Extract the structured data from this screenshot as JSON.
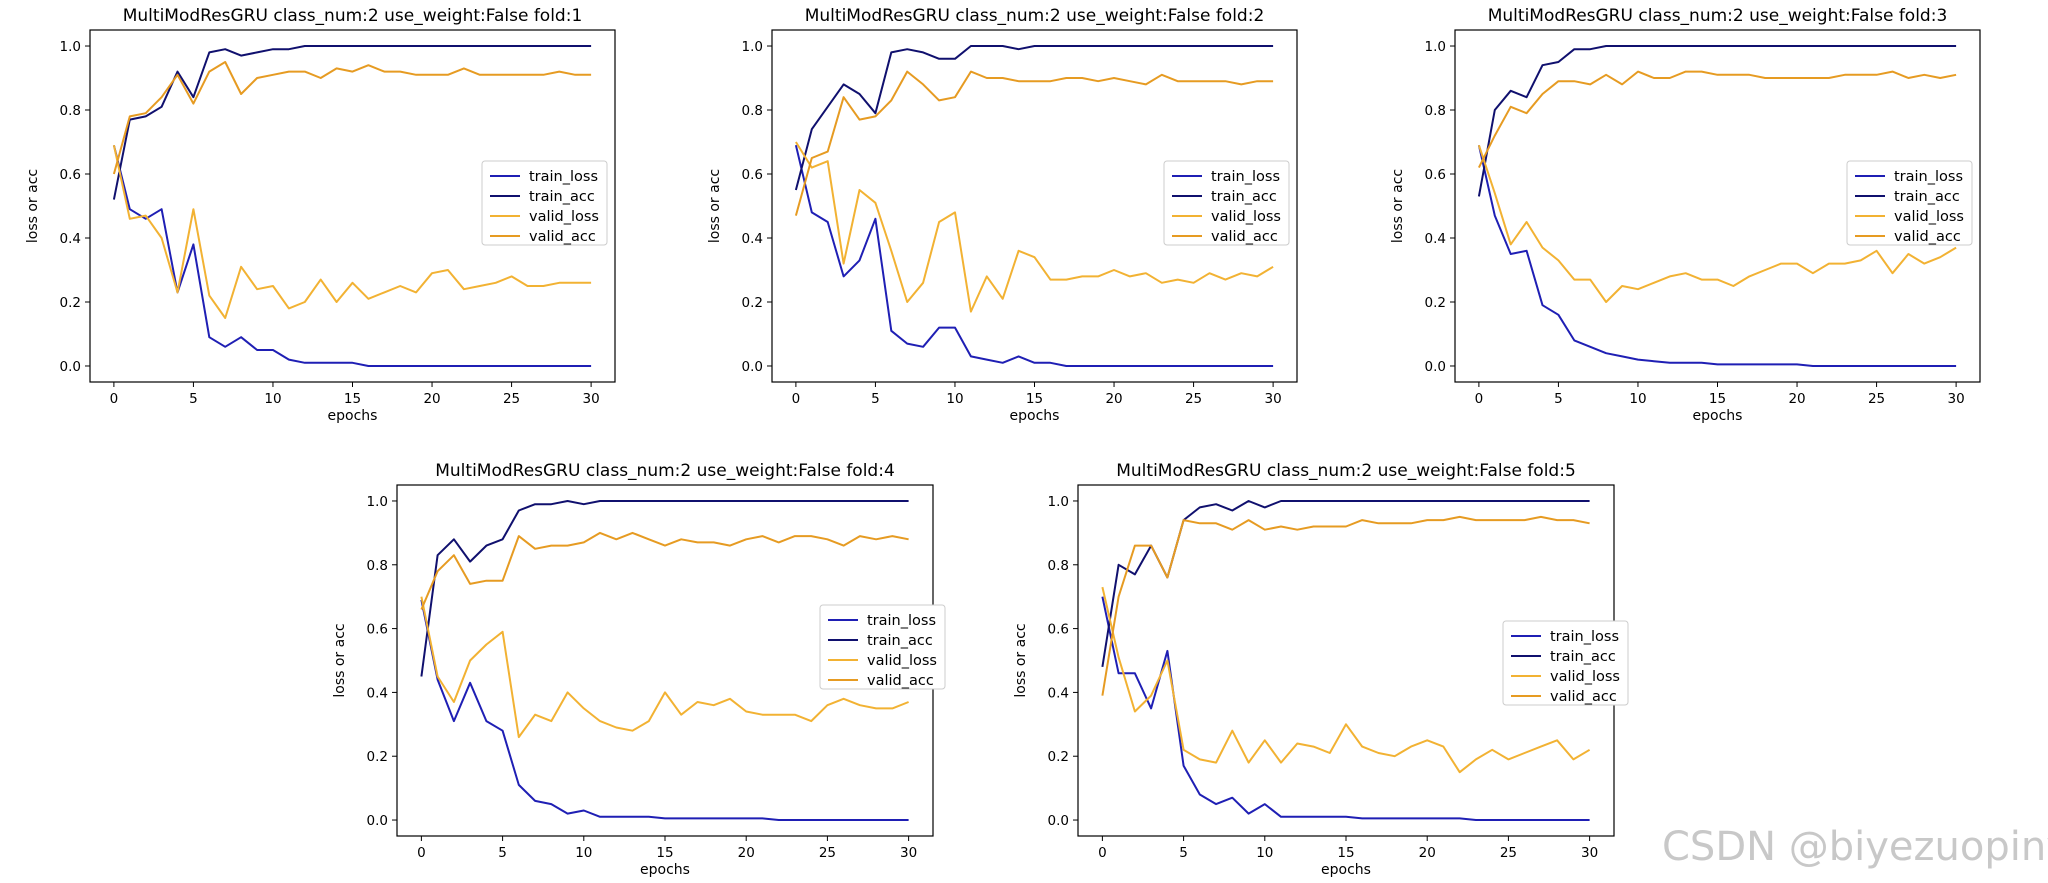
{
  "watermark": "CSDN @biyezuopinvip",
  "colors": {
    "train_loss": "#1f1fb4",
    "train_acc": "#10106e",
    "valid_loss": "#f2b233",
    "valid_acc": "#e69b22"
  },
  "chart_data": [
    {
      "type": "line",
      "title": "MultiModResGRU class_num:2 use_weight:False fold:1",
      "xlabel": "epochs",
      "ylabel": "loss or acc",
      "xlim": [
        0,
        30
      ],
      "ylim": [
        0,
        1
      ],
      "xticks": [
        0,
        5,
        10,
        15,
        20,
        25,
        30
      ],
      "yticks": [
        "0.0",
        "0.2",
        "0.4",
        "0.6",
        "0.8",
        "1.0"
      ],
      "legend": "center-right",
      "series": [
        {
          "name": "train_loss",
          "values": [
            0.69,
            0.49,
            0.46,
            0.49,
            0.23,
            0.38,
            0.09,
            0.06,
            0.09,
            0.05,
            0.05,
            0.02,
            0.01,
            0.01,
            0.01,
            0.01,
            0.0,
            0.0,
            0.0,
            0.0,
            0.0,
            0.0,
            0.0,
            0.0,
            0.0,
            0.0,
            0.0,
            0.0,
            0.0,
            0.0,
            0.0
          ]
        },
        {
          "name": "train_acc",
          "values": [
            0.52,
            0.77,
            0.78,
            0.81,
            0.92,
            0.84,
            0.98,
            0.99,
            0.97,
            0.98,
            0.99,
            0.99,
            1.0,
            1.0,
            1.0,
            1.0,
            1.0,
            1.0,
            1.0,
            1.0,
            1.0,
            1.0,
            1.0,
            1.0,
            1.0,
            1.0,
            1.0,
            1.0,
            1.0,
            1.0,
            1.0
          ]
        },
        {
          "name": "valid_loss",
          "values": [
            0.69,
            0.46,
            0.47,
            0.4,
            0.23,
            0.49,
            0.22,
            0.15,
            0.31,
            0.24,
            0.25,
            0.18,
            0.2,
            0.27,
            0.2,
            0.26,
            0.21,
            0.23,
            0.25,
            0.23,
            0.29,
            0.3,
            0.24,
            0.25,
            0.26,
            0.28,
            0.25,
            0.25,
            0.26,
            0.26,
            0.26
          ]
        },
        {
          "name": "valid_acc",
          "values": [
            0.6,
            0.78,
            0.79,
            0.84,
            0.91,
            0.82,
            0.92,
            0.95,
            0.85,
            0.9,
            0.91,
            0.92,
            0.92,
            0.9,
            0.93,
            0.92,
            0.94,
            0.92,
            0.92,
            0.91,
            0.91,
            0.91,
            0.93,
            0.91,
            0.91,
            0.91,
            0.91,
            0.91,
            0.92,
            0.91,
            0.91
          ]
        }
      ]
    },
    {
      "type": "line",
      "title": "MultiModResGRU class_num:2 use_weight:False fold:2",
      "xlabel": "epochs",
      "ylabel": "loss or acc",
      "xlim": [
        0,
        30
      ],
      "ylim": [
        0,
        1
      ],
      "xticks": [
        0,
        5,
        10,
        15,
        20,
        25,
        30
      ],
      "yticks": [
        "0.0",
        "0.2",
        "0.4",
        "0.6",
        "0.8",
        "1.0"
      ],
      "legend": "center-right",
      "series": [
        {
          "name": "train_loss",
          "values": [
            0.69,
            0.48,
            0.45,
            0.28,
            0.33,
            0.46,
            0.11,
            0.07,
            0.06,
            0.12,
            0.12,
            0.03,
            0.02,
            0.01,
            0.03,
            0.01,
            0.01,
            0.0,
            0.0,
            0.0,
            0.0,
            0.0,
            0.0,
            0.0,
            0.0,
            0.0,
            0.0,
            0.0,
            0.0,
            0.0,
            0.0
          ]
        },
        {
          "name": "train_acc",
          "values": [
            0.55,
            0.74,
            0.81,
            0.88,
            0.85,
            0.79,
            0.98,
            0.99,
            0.98,
            0.96,
            0.96,
            1.0,
            1.0,
            1.0,
            0.99,
            1.0,
            1.0,
            1.0,
            1.0,
            1.0,
            1.0,
            1.0,
            1.0,
            1.0,
            1.0,
            1.0,
            1.0,
            1.0,
            1.0,
            1.0,
            1.0
          ]
        },
        {
          "name": "valid_loss",
          "values": [
            0.7,
            0.62,
            0.64,
            0.32,
            0.55,
            0.51,
            0.36,
            0.2,
            0.26,
            0.45,
            0.48,
            0.17,
            0.28,
            0.21,
            0.36,
            0.34,
            0.27,
            0.27,
            0.28,
            0.28,
            0.3,
            0.28,
            0.29,
            0.26,
            0.27,
            0.26,
            0.29,
            0.27,
            0.29,
            0.28,
            0.31
          ]
        },
        {
          "name": "valid_acc",
          "values": [
            0.47,
            0.65,
            0.67,
            0.84,
            0.77,
            0.78,
            0.83,
            0.92,
            0.88,
            0.83,
            0.84,
            0.92,
            0.9,
            0.9,
            0.89,
            0.89,
            0.89,
            0.9,
            0.9,
            0.89,
            0.9,
            0.89,
            0.88,
            0.91,
            0.89,
            0.89,
            0.89,
            0.89,
            0.88,
            0.89,
            0.89
          ]
        }
      ]
    },
    {
      "type": "line",
      "title": "MultiModResGRU class_num:2 use_weight:False fold:3",
      "xlabel": "epochs",
      "ylabel": "loss or acc",
      "xlim": [
        0,
        30
      ],
      "ylim": [
        0,
        1
      ],
      "xticks": [
        0,
        5,
        10,
        15,
        20,
        25,
        30
      ],
      "yticks": [
        "0.0",
        "0.2",
        "0.4",
        "0.6",
        "0.8",
        "1.0"
      ],
      "legend": "center-right",
      "series": [
        {
          "name": "train_loss",
          "values": [
            0.69,
            0.47,
            0.35,
            0.36,
            0.19,
            0.16,
            0.08,
            0.06,
            0.04,
            0.03,
            0.02,
            0.015,
            0.01,
            0.01,
            0.01,
            0.005,
            0.005,
            0.005,
            0.005,
            0.005,
            0.005,
            0.0,
            0.0,
            0.0,
            0.0,
            0.0,
            0.0,
            0.0,
            0.0,
            0.0,
            0.0
          ]
        },
        {
          "name": "train_acc",
          "values": [
            0.53,
            0.8,
            0.86,
            0.84,
            0.94,
            0.95,
            0.99,
            0.99,
            1.0,
            1.0,
            1.0,
            1.0,
            1.0,
            1.0,
            1.0,
            1.0,
            1.0,
            1.0,
            1.0,
            1.0,
            1.0,
            1.0,
            1.0,
            1.0,
            1.0,
            1.0,
            1.0,
            1.0,
            1.0,
            1.0,
            1.0
          ]
        },
        {
          "name": "valid_loss",
          "values": [
            0.69,
            0.54,
            0.38,
            0.45,
            0.37,
            0.33,
            0.27,
            0.27,
            0.2,
            0.25,
            0.24,
            0.26,
            0.28,
            0.29,
            0.27,
            0.27,
            0.25,
            0.28,
            0.3,
            0.32,
            0.32,
            0.29,
            0.32,
            0.32,
            0.33,
            0.36,
            0.29,
            0.35,
            0.32,
            0.34,
            0.37
          ]
        },
        {
          "name": "valid_acc",
          "values": [
            0.62,
            0.72,
            0.81,
            0.79,
            0.85,
            0.89,
            0.89,
            0.88,
            0.91,
            0.88,
            0.92,
            0.9,
            0.9,
            0.92,
            0.92,
            0.91,
            0.91,
            0.91,
            0.9,
            0.9,
            0.9,
            0.9,
            0.9,
            0.91,
            0.91,
            0.91,
            0.92,
            0.9,
            0.91,
            0.9,
            0.91
          ]
        }
      ]
    },
    {
      "type": "line",
      "title": "MultiModResGRU class_num:2 use_weight:False fold:4",
      "xlabel": "epochs",
      "ylabel": "loss or acc",
      "xlim": [
        0,
        30
      ],
      "ylim": [
        0,
        1
      ],
      "xticks": [
        0,
        5,
        10,
        15,
        20,
        25,
        30
      ],
      "yticks": [
        "0.0",
        "0.2",
        "0.4",
        "0.6",
        "0.8",
        "1.0"
      ],
      "legend": "center-right",
      "series": [
        {
          "name": "train_loss",
          "values": [
            0.69,
            0.44,
            0.31,
            0.43,
            0.31,
            0.28,
            0.11,
            0.06,
            0.05,
            0.02,
            0.03,
            0.01,
            0.01,
            0.01,
            0.01,
            0.005,
            0.005,
            0.005,
            0.005,
            0.005,
            0.005,
            0.005,
            0.0,
            0.0,
            0.0,
            0.0,
            0.0,
            0.0,
            0.0,
            0.0,
            0.0
          ]
        },
        {
          "name": "train_acc",
          "values": [
            0.45,
            0.83,
            0.88,
            0.81,
            0.86,
            0.88,
            0.97,
            0.99,
            0.99,
            1.0,
            0.99,
            1.0,
            1.0,
            1.0,
            1.0,
            1.0,
            1.0,
            1.0,
            1.0,
            1.0,
            1.0,
            1.0,
            1.0,
            1.0,
            1.0,
            1.0,
            1.0,
            1.0,
            1.0,
            1.0,
            1.0
          ]
        },
        {
          "name": "valid_loss",
          "values": [
            0.7,
            0.45,
            0.37,
            0.5,
            0.55,
            0.59,
            0.26,
            0.33,
            0.31,
            0.4,
            0.35,
            0.31,
            0.29,
            0.28,
            0.31,
            0.4,
            0.33,
            0.37,
            0.36,
            0.38,
            0.34,
            0.33,
            0.33,
            0.33,
            0.31,
            0.36,
            0.38,
            0.36,
            0.35,
            0.35,
            0.37
          ]
        },
        {
          "name": "valid_acc",
          "values": [
            0.66,
            0.78,
            0.83,
            0.74,
            0.75,
            0.75,
            0.89,
            0.85,
            0.86,
            0.86,
            0.87,
            0.9,
            0.88,
            0.9,
            0.88,
            0.86,
            0.88,
            0.87,
            0.87,
            0.86,
            0.88,
            0.89,
            0.87,
            0.89,
            0.89,
            0.88,
            0.86,
            0.89,
            0.88,
            0.89,
            0.88
          ]
        }
      ]
    },
    {
      "type": "line",
      "title": "MultiModResGRU class_num:2 use_weight:False fold:5",
      "xlabel": "epochs",
      "ylabel": "loss or acc",
      "xlim": [
        0,
        30
      ],
      "ylim": [
        0,
        1
      ],
      "xticks": [
        0,
        5,
        10,
        15,
        20,
        25,
        30
      ],
      "yticks": [
        "0.0",
        "0.2",
        "0.4",
        "0.6",
        "0.8",
        "1.0"
      ],
      "legend": "center-right",
      "series": [
        {
          "name": "train_loss",
          "values": [
            0.7,
            0.46,
            0.46,
            0.35,
            0.53,
            0.17,
            0.08,
            0.05,
            0.07,
            0.02,
            0.05,
            0.01,
            0.01,
            0.01,
            0.01,
            0.01,
            0.005,
            0.005,
            0.005,
            0.005,
            0.005,
            0.005,
            0.005,
            0.0,
            0.0,
            0.0,
            0.0,
            0.0,
            0.0,
            0.0,
            0.0
          ]
        },
        {
          "name": "train_acc",
          "values": [
            0.48,
            0.8,
            0.77,
            0.86,
            0.76,
            0.94,
            0.98,
            0.99,
            0.97,
            1.0,
            0.98,
            1.0,
            1.0,
            1.0,
            1.0,
            1.0,
            1.0,
            1.0,
            1.0,
            1.0,
            1.0,
            1.0,
            1.0,
            1.0,
            1.0,
            1.0,
            1.0,
            1.0,
            1.0,
            1.0,
            1.0
          ]
        },
        {
          "name": "valid_loss",
          "values": [
            0.73,
            0.51,
            0.34,
            0.39,
            0.5,
            0.22,
            0.19,
            0.18,
            0.28,
            0.18,
            0.25,
            0.18,
            0.24,
            0.23,
            0.21,
            0.3,
            0.23,
            0.21,
            0.2,
            0.23,
            0.25,
            0.23,
            0.15,
            0.19,
            0.22,
            0.19,
            0.21,
            0.23,
            0.25,
            0.19,
            0.22
          ]
        },
        {
          "name": "valid_acc",
          "values": [
            0.39,
            0.7,
            0.86,
            0.86,
            0.76,
            0.94,
            0.93,
            0.93,
            0.91,
            0.94,
            0.91,
            0.92,
            0.91,
            0.92,
            0.92,
            0.92,
            0.94,
            0.93,
            0.93,
            0.93,
            0.94,
            0.94,
            0.95,
            0.94,
            0.94,
            0.94,
            0.94,
            0.95,
            0.94,
            0.94,
            0.93
          ]
        }
      ]
    }
  ]
}
